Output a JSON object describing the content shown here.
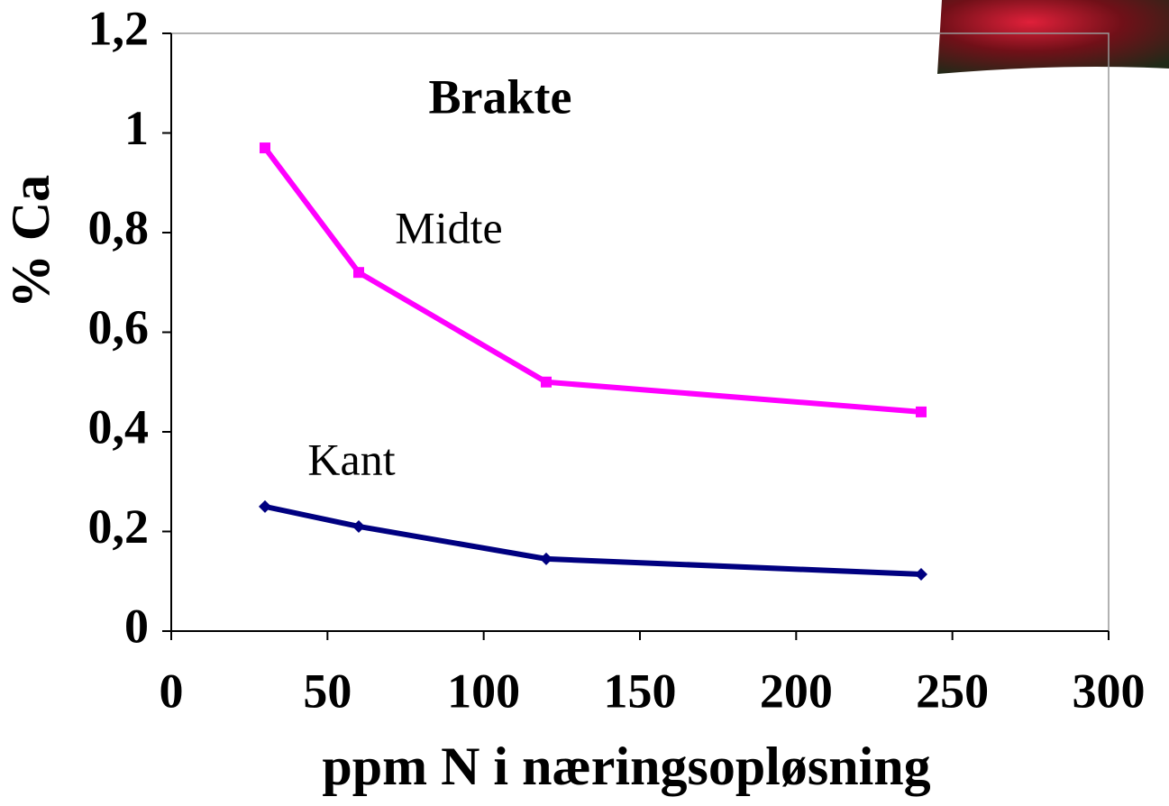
{
  "chart_data": {
    "type": "line",
    "title": "Brakte",
    "xlabel": "ppm N i næringsopløsning",
    "ylabel": "% Ca",
    "x": [
      30,
      60,
      120,
      240
    ],
    "series": [
      {
        "name": "Midte",
        "color": "#ff00ff",
        "marker": "square",
        "values": [
          0.97,
          0.72,
          0.5,
          0.44
        ]
      },
      {
        "name": "Kant",
        "color": "#000080",
        "marker": "diamond",
        "values": [
          0.25,
          0.21,
          0.145,
          0.114
        ]
      }
    ],
    "xlim": [
      0,
      300
    ],
    "xticks": [
      0,
      50,
      100,
      150,
      200,
      250,
      300
    ],
    "ylim": [
      0,
      1.2
    ],
    "yticks": [
      0,
      {
        "value": 0.2,
        "label": "0,2"
      },
      {
        "value": 0.4,
        "label": "0,4"
      },
      {
        "value": 0.6,
        "label": "0,6"
      },
      {
        "value": 0.8,
        "label": "0,8"
      },
      1,
      {
        "value": 1.2,
        "label": "1,2"
      }
    ],
    "grid": false
  }
}
